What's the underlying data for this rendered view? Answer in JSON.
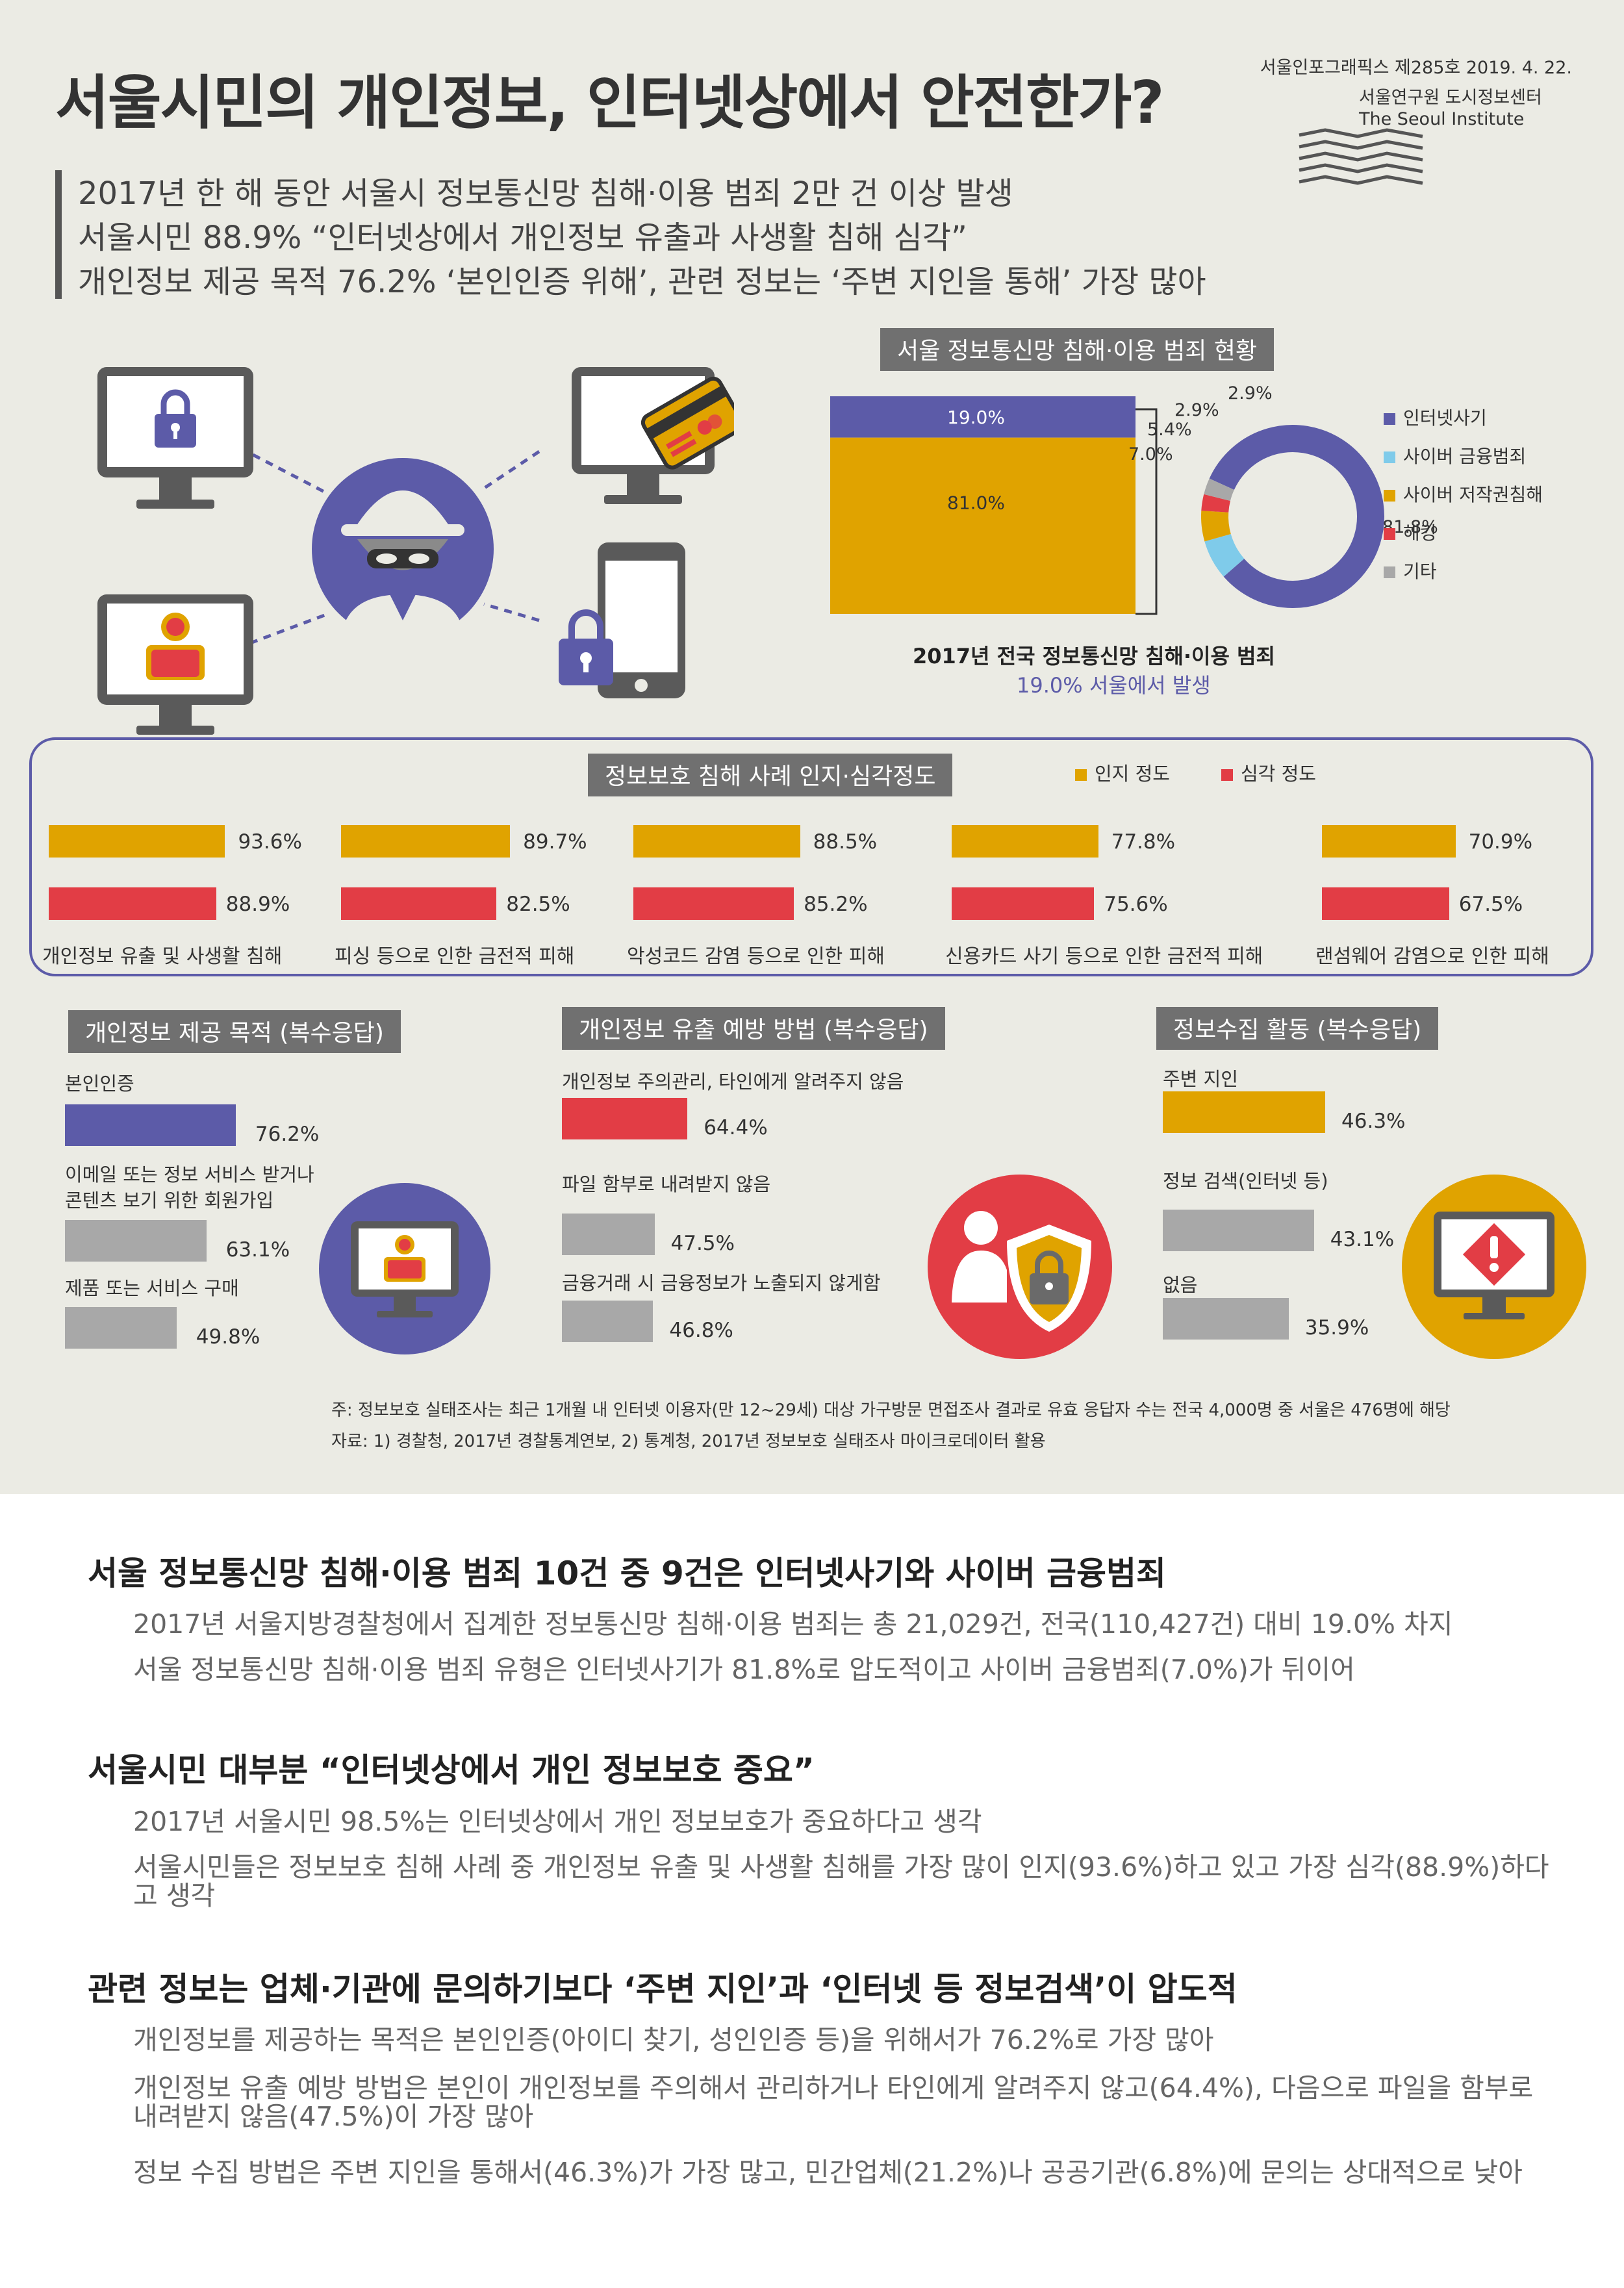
{
  "header": {
    "title": "서울시민의 개인정보, 인터넷상에서 안전한가?",
    "issue": "서울인포그래픽스 제285호 2019. 4. 22.",
    "institute_kr": "서울연구원 도시정보센터",
    "institute_en": "The Seoul Institute"
  },
  "headlines": [
    "2017년 한 해 동안 서울시 정보통신망 침해·이용 범죄 2만 건 이상 발생",
    "서울시민 88.9% “인터넷상에서 개인정보 유출과 사생활 침해 심각”",
    "개인정보 제공 목적 76.2% ‘본인인증 위해’, 관련 정보는 ‘주변 지인을 통해’ 가장 많아"
  ],
  "colors": {
    "blue": "#5c5ba8",
    "gold": "#e0a300",
    "red": "#e23d45",
    "gray": "#a8a8a8",
    "sky": "#7fcbea",
    "bg": "#ebebe4"
  },
  "chart_data": [
    {
      "type": "bar",
      "title": "서울 정보통신망 침해·이용 범죄 현황",
      "categories": [
        "2017년 전국 정보통신망 침해·이용 범죄"
      ],
      "series": [
        {
          "name": "서울",
          "values": [
            19.0
          ]
        },
        {
          "name": "",
          "values": [
            81.0
          ]
        }
      ],
      "value_labels": [
        "19.0%",
        "81.0%"
      ],
      "caption_line1": "2017년 전국 정보통신망 침해·이용 범죄",
      "caption_line2": "19.0% 서울에서 발생"
    },
    {
      "type": "pie",
      "categories": [
        "인터넷사기",
        "사이버 금융범죄",
        "사이버 저작권침해",
        "해킹",
        "기타"
      ],
      "values": [
        81.8,
        7.0,
        5.4,
        2.9,
        2.9
      ],
      "value_labels": [
        "81.8%",
        "7.0%",
        "5.4%",
        "2.9%",
        "2.9%"
      ],
      "colors": [
        "#5c5ba8",
        "#7fcbea",
        "#e0a300",
        "#e23d45",
        "#a8a8a8"
      ],
      "legend": "right"
    },
    {
      "type": "bar",
      "title": "정보보호 침해 사례 인지·심각정도",
      "categories": [
        "개인정보 유출 및 사생활 침해",
        "피싱 등으로 인한 금전적 피해",
        "악성코드 감염  등으로 인한 피해",
        "신용카드 사기 등으로 인한 금전적 피해",
        "랜섬웨어 감염으로 인한 피해"
      ],
      "series": [
        {
          "name": "인지 정도",
          "values": [
            93.6,
            89.7,
            88.5,
            77.8,
            70.9
          ],
          "labels": [
            "93.6%",
            "89.7%",
            "88.5%",
            "77.8%",
            "70.9%"
          ]
        },
        {
          "name": "심각 정도",
          "values": [
            88.9,
            82.5,
            85.2,
            75.6,
            67.5
          ],
          "labels": [
            "88.9%",
            "82.5%",
            "85.2%",
            "75.6%",
            "67.5%"
          ]
        }
      ],
      "legend": "top"
    },
    {
      "type": "bar",
      "title": "개인정보 제공 목적 (복수응답)",
      "categories": [
        "본인인증",
        "이메일 또는 정보 서비스 받거나",
        "제품 또는 서비스 구매"
      ],
      "category_line2": [
        "",
        "콘텐츠 보기 위한 회원가입",
        ""
      ],
      "values": [
        76.2,
        63.1,
        49.8
      ],
      "value_labels": [
        "76.2%",
        "63.1%",
        "49.8%"
      ]
    },
    {
      "type": "bar",
      "title": "개인정보 유출 예방 방법 (복수응답)",
      "categories": [
        "개인정보 주의관리, 타인에게 알려주지 않음",
        "파일 함부로 내려받지 않음",
        "금융거래 시 금융정보가 노출되지 않게함"
      ],
      "values": [
        64.4,
        47.5,
        46.8
      ],
      "value_labels": [
        "64.4%",
        "47.5%",
        "46.8%"
      ]
    },
    {
      "type": "bar",
      "title": "정보수집 활동 (복수응답)",
      "categories": [
        "주변 지인",
        "정보 검색(인터넷 등)",
        "없음"
      ],
      "values": [
        46.3,
        43.1,
        35.9
      ],
      "value_labels": [
        "46.3%",
        "43.1%",
        "35.9%"
      ]
    }
  ],
  "icons": [
    "lock-icon",
    "credit-card-icon",
    "hacker-icon",
    "user-icon",
    "smartphone-icon",
    "shield-lock-icon",
    "warning-icon",
    "seoul-institute-logo"
  ],
  "notes": {
    "note": "주: 정보보호 실태조사는 최근 1개월 내 인터넷 이용자(만 12~29세) 대상 가구방문 면접조사 결과로 유효 응답자 수는 전국 4,000명 중 서울은 476명에 해당",
    "source": "자료: 1) 경찰청, 2017년 경찰통계연보, 2) 통계청, 2017년 정보보호 실태조사 마이크로데이터 활용"
  },
  "sections": [
    {
      "heading": "서울 정보통신망 침해·이용 범죄 10건 중 9건은 인터넷사기와 사이버 금융범죄",
      "paragraphs": [
        "2017년 서울지방경찰청에서 집계한 정보통신망 침해·이용 범죄는 총 21,029건, 전국(110,427건) 대비 19.0% 차지",
        "서울 정보통신망 침해·이용 범죄 유형은 인터넷사기가 81.8%로 압도적이고 사이버 금융범죄(7.0%)가 뒤이어"
      ]
    },
    {
      "heading": "서울시민 대부분 “인터넷상에서 개인 정보보호 중요”",
      "paragraphs": [
        "2017년 서울시민 98.5%는 인터넷상에서 개인 정보보호가 중요하다고 생각",
        "서울시민들은 정보보호 침해 사례 중 개인정보 유출 및 사생활 침해를 가장 많이 인지(93.6%)하고 있고 가장 심각(88.9%)하다고 생각"
      ]
    },
    {
      "heading": "관련 정보는 업체·기관에 문의하기보다 ‘주변 지인’과 ‘인터넷 등 정보검색’이 압도적",
      "paragraphs": [
        "개인정보를 제공하는 목적은 본인인증(아이디 찾기, 성인인증 등)을 위해서가 76.2%로 가장 많아",
        "개인정보 유출 예방 방법은 본인이 개인정보를 주의해서 관리하거나 타인에게 알려주지 않고(64.4%), 다음으로 파일을 함부로 내려받지 않음(47.5%)이 가장 많아",
        "정보 수집 방법은 주변 지인을 통해서(46.3%)가 가장 많고, 민간업체(21.2%)나 공공기관(6.8%)에 문의는 상대적으로 낮아"
      ]
    }
  ]
}
